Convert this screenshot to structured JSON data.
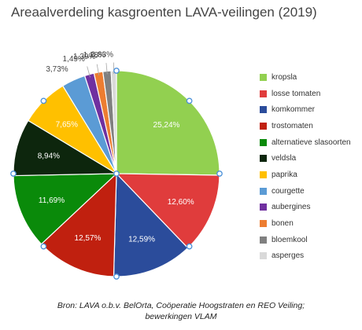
{
  "chart_data": {
    "type": "pie",
    "title": "Areaalverdeling kasgroenten LAVA-veilingen (2019)",
    "slices": [
      {
        "name": "kropsla",
        "value": 25.24,
        "label": "25,24%",
        "color": "#92d050"
      },
      {
        "name": "losse tomaten",
        "value": 12.6,
        "label": "12,60%",
        "color": "#e03c3c"
      },
      {
        "name": "komkommer",
        "value": 12.59,
        "label": "12,59%",
        "color": "#2b4c9b"
      },
      {
        "name": "trostomaten",
        "value": 12.57,
        "label": "12,57%",
        "color": "#c0200f"
      },
      {
        "name": "alternatieve slasoorten",
        "value": 11.69,
        "label": "11,69%",
        "color": "#0a8a0a"
      },
      {
        "name": "veldsla",
        "value": 8.94,
        "label": "8,94%",
        "color": "#0d260d"
      },
      {
        "name": "paprika",
        "value": 7.65,
        "label": "7,65%",
        "color": "#ffc000"
      },
      {
        "name": "courgette",
        "value": 3.73,
        "label": "3,73%",
        "color": "#5b9bd5"
      },
      {
        "name": "aubergines",
        "value": 1.49,
        "label": "1,49%",
        "color": "#7030a0"
      },
      {
        "name": "bonen",
        "value": 1.39,
        "label": "1,39%",
        "color": "#ed7d31"
      },
      {
        "name": "bloemkool",
        "value": 1.28,
        "label": "1,28%",
        "color": "#808080"
      },
      {
        "name": "asperges",
        "value": 0.83,
        "label": "0,83%",
        "color": "#d9d9d9"
      }
    ],
    "legend_position": "right"
  },
  "source": {
    "line1": "Bron: LAVA o.b.v. BelOrta, Coöperatie Hoogstraten en REO Veiling;",
    "line2": "bewerkingen VLAM"
  }
}
